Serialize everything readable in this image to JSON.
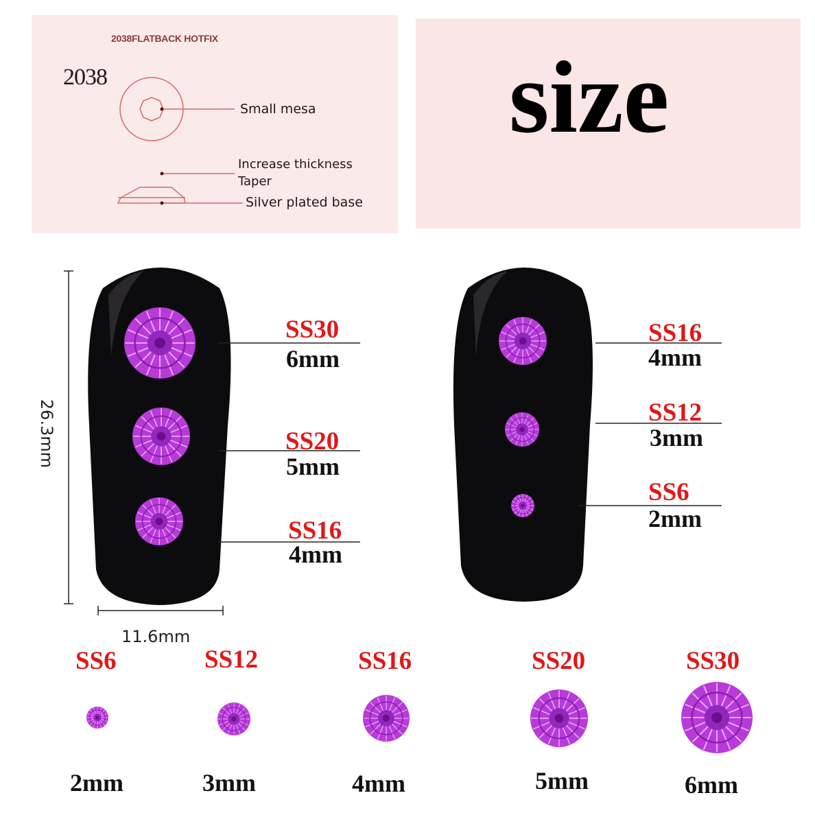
{
  "diagram": {
    "title": "2038FLATBACK HOTFIX",
    "model": "2038",
    "labels": {
      "mesa": "Small mesa",
      "thickness": "Increase thickness",
      "taper": "Taper",
      "base": "Silver plated base"
    },
    "line_color": "#d46a6a"
  },
  "header": {
    "word": "size"
  },
  "dimensions": {
    "height": "26.3mm",
    "width": "11.6mm"
  },
  "nail_left": [
    {
      "ss": "SS30",
      "mm": "6mm"
    },
    {
      "ss": "SS20",
      "mm": "5mm"
    },
    {
      "ss": "SS16",
      "mm": "4mm"
    }
  ],
  "nail_right": [
    {
      "ss": "SS16",
      "mm": "4mm"
    },
    {
      "ss": "SS12",
      "mm": "3mm"
    },
    {
      "ss": "SS6",
      "mm": "2mm"
    }
  ],
  "bottom_row": [
    {
      "ss": "SS6",
      "mm": "2mm"
    },
    {
      "ss": "SS12",
      "mm": "3mm"
    },
    {
      "ss": "SS16",
      "mm": "4mm"
    },
    {
      "ss": "SS20",
      "mm": "5mm"
    },
    {
      "ss": "SS30",
      "mm": "6mm"
    }
  ],
  "colors": {
    "gem": "#b73ad9",
    "gem_dark": "#6a0f8a",
    "label_red": "#e01818",
    "nail": "#0c0b0d",
    "panel": "#fbeaea"
  }
}
